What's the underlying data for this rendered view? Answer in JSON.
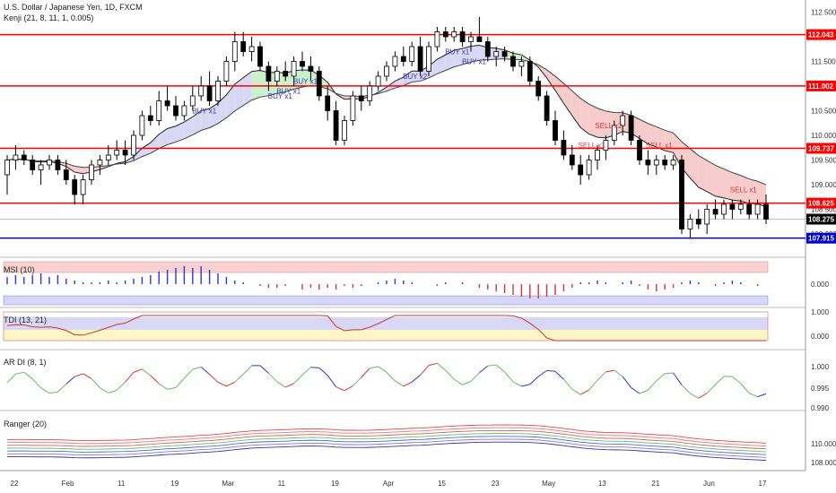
{
  "header": {
    "title": "U.S. Dollar / Japanese Yen, 1D, FXCM",
    "indicator": "Kenji (21, 8, 11, 1, 0.005)"
  },
  "colors": {
    "up_candle": "#ffffff",
    "down_candle": "#000000",
    "resistance": "#ff0000",
    "support": "#0000cc",
    "buy_text": "#3333bb",
    "sell_text": "#ee3333",
    "upper_band_fill_green": "#ccf0cc",
    "band_fill_blue": "#d8d8f4",
    "band_fill_red": "#f6cccc"
  },
  "chart_data": [
    {
      "type": "candlestick",
      "title": "U.S. Dollar / Japanese Yen, 1D, FXCM",
      "ylim": [
        107.6,
        112.6
      ],
      "yticks": [
        108.0,
        108.5,
        109.0,
        109.5,
        110.0,
        110.5,
        111.0,
        111.5,
        112.0,
        112.5
      ],
      "x_ticks": [
        "22",
        "Feb",
        "11",
        "19",
        "Mar",
        "11",
        "19",
        "Apr",
        "15",
        "23",
        "May",
        "13",
        "21",
        "Jun",
        "17"
      ],
      "horizontal_levels": [
        {
          "value": 112.043,
          "label": "112.043",
          "color": "#ff0000"
        },
        {
          "value": 111.002,
          "label": "111.002",
          "color": "#ff0000"
        },
        {
          "value": 109.737,
          "label": "109.737",
          "color": "#ff0000"
        },
        {
          "value": 108.625,
          "label": "108.625",
          "color": "#ff0000"
        },
        {
          "value": 107.915,
          "label": "107.915",
          "color": "#0000cc"
        }
      ],
      "last_price": "108.275",
      "candles_ohlc": [
        [
          109.2,
          109.6,
          108.8,
          109.5
        ],
        [
          109.5,
          109.8,
          109.3,
          109.6
        ],
        [
          109.6,
          109.7,
          109.4,
          109.5
        ],
        [
          109.5,
          109.6,
          109.2,
          109.3
        ],
        [
          109.3,
          109.5,
          109.0,
          109.4
        ],
        [
          109.4,
          109.6,
          109.3,
          109.5
        ],
        [
          109.5,
          109.6,
          109.2,
          109.3
        ],
        [
          109.3,
          109.5,
          109.0,
          109.1
        ],
        [
          109.1,
          109.2,
          108.6,
          108.8
        ],
        [
          108.8,
          109.2,
          108.6,
          109.1
        ],
        [
          109.1,
          109.5,
          109.0,
          109.4
        ],
        [
          109.4,
          109.6,
          109.2,
          109.5
        ],
        [
          109.5,
          109.8,
          109.4,
          109.6
        ],
        [
          109.6,
          109.9,
          109.5,
          109.7
        ],
        [
          109.7,
          109.9,
          109.4,
          109.6
        ],
        [
          109.6,
          110.1,
          109.5,
          110.0
        ],
        [
          110.0,
          110.5,
          109.9,
          110.4
        ],
        [
          110.4,
          110.6,
          110.2,
          110.3
        ],
        [
          110.3,
          110.9,
          110.2,
          110.7
        ],
        [
          110.7,
          111.0,
          110.5,
          110.6
        ],
        [
          110.6,
          110.8,
          110.3,
          110.4
        ],
        [
          110.4,
          110.7,
          110.3,
          110.6
        ],
        [
          110.6,
          111.0,
          110.5,
          110.8
        ],
        [
          110.8,
          111.2,
          110.7,
          111.0
        ],
        [
          111.0,
          111.3,
          110.6,
          110.7
        ],
        [
          110.7,
          111.2,
          110.6,
          111.1
        ],
        [
          111.1,
          111.6,
          111.0,
          111.5
        ],
        [
          111.5,
          112.1,
          111.3,
          111.9
        ],
        [
          111.9,
          112.1,
          111.6,
          111.7
        ],
        [
          111.7,
          112.0,
          111.5,
          111.8
        ],
        [
          111.8,
          111.9,
          111.3,
          111.4
        ],
        [
          111.4,
          111.5,
          110.9,
          111.1
        ],
        [
          111.1,
          111.4,
          111.0,
          111.3
        ],
        [
          111.3,
          111.5,
          111.1,
          111.2
        ],
        [
          111.2,
          111.6,
          111.0,
          111.5
        ],
        [
          111.5,
          111.7,
          111.3,
          111.4
        ],
        [
          111.4,
          111.6,
          111.1,
          111.3
        ],
        [
          111.3,
          111.4,
          110.7,
          110.8
        ],
        [
          110.8,
          111.0,
          110.3,
          110.5
        ],
        [
          110.5,
          110.7,
          109.8,
          109.9
        ],
        [
          109.9,
          110.4,
          109.8,
          110.3
        ],
        [
          110.3,
          110.9,
          110.2,
          110.8
        ],
        [
          110.8,
          111.0,
          110.5,
          110.7
        ],
        [
          110.7,
          111.1,
          110.6,
          111.0
        ],
        [
          111.0,
          111.3,
          110.9,
          111.2
        ],
        [
          111.2,
          111.5,
          111.1,
          111.4
        ],
        [
          111.4,
          111.7,
          111.3,
          111.6
        ],
        [
          111.6,
          111.8,
          111.4,
          111.5
        ],
        [
          111.5,
          111.9,
          111.4,
          111.8
        ],
        [
          111.8,
          112.0,
          111.2,
          111.3
        ],
        [
          111.3,
          111.9,
          111.2,
          111.8
        ],
        [
          111.8,
          112.2,
          111.7,
          112.1
        ],
        [
          112.1,
          112.2,
          111.9,
          112.0
        ],
        [
          112.0,
          112.2,
          111.9,
          112.1
        ],
        [
          112.1,
          112.2,
          111.8,
          111.9
        ],
        [
          111.9,
          112.1,
          111.7,
          112.0
        ],
        [
          112.0,
          112.4,
          111.9,
          111.9
        ],
        [
          111.9,
          112.0,
          111.5,
          111.6
        ],
        [
          111.6,
          111.8,
          111.4,
          111.7
        ],
        [
          111.7,
          111.8,
          111.5,
          111.6
        ],
        [
          111.6,
          111.7,
          111.3,
          111.4
        ],
        [
          111.4,
          111.6,
          111.2,
          111.5
        ],
        [
          111.5,
          111.6,
          111.0,
          111.1
        ],
        [
          111.1,
          111.2,
          110.7,
          110.8
        ],
        [
          110.8,
          110.9,
          110.2,
          110.3
        ],
        [
          110.3,
          110.5,
          109.8,
          109.9
        ],
        [
          109.9,
          110.1,
          109.5,
          109.6
        ],
        [
          109.6,
          109.8,
          109.3,
          109.4
        ],
        [
          109.4,
          109.6,
          109.0,
          109.2
        ],
        [
          109.2,
          109.6,
          109.1,
          109.5
        ],
        [
          109.5,
          109.8,
          109.3,
          109.7
        ],
        [
          109.7,
          110.0,
          109.5,
          109.9
        ],
        [
          109.9,
          110.3,
          109.8,
          110.2
        ],
        [
          110.2,
          110.5,
          110.0,
          110.4
        ],
        [
          110.4,
          110.5,
          109.8,
          109.9
        ],
        [
          109.9,
          110.0,
          109.4,
          109.5
        ],
        [
          109.5,
          109.7,
          109.2,
          109.4
        ],
        [
          109.4,
          109.6,
          109.2,
          109.5
        ],
        [
          109.5,
          109.6,
          109.3,
          109.4
        ],
        [
          109.4,
          109.6,
          109.3,
          109.5
        ],
        [
          109.5,
          109.6,
          108.0,
          108.1
        ],
        [
          108.1,
          108.4,
          107.9,
          108.3
        ],
        [
          108.3,
          108.5,
          108.1,
          108.2
        ],
        [
          108.2,
          108.6,
          108.0,
          108.5
        ],
        [
          108.5,
          108.7,
          108.3,
          108.4
        ],
        [
          108.4,
          108.7,
          108.3,
          108.6
        ],
        [
          108.6,
          108.7,
          108.3,
          108.5
        ],
        [
          108.5,
          108.7,
          108.4,
          108.6
        ],
        [
          108.6,
          108.7,
          108.3,
          108.4
        ],
        [
          108.4,
          108.7,
          108.3,
          108.6
        ],
        [
          108.6,
          108.8,
          108.2,
          108.3
        ]
      ],
      "signals": [
        {
          "text": "BUY x1",
          "index": 23,
          "kind": "buy"
        },
        {
          "text": "BUY x1",
          "index": 33,
          "kind": "buy"
        },
        {
          "text": "BUY x1",
          "index": 32,
          "kind": "buy"
        },
        {
          "text": "BUY x1",
          "index": 35,
          "kind": "buy"
        },
        {
          "text": "BUY x2",
          "index": 48,
          "kind": "buy"
        },
        {
          "text": "BUY x1",
          "index": 53,
          "kind": "buy"
        },
        {
          "text": "BUY x1",
          "index": 55,
          "kind": "buy"
        },
        {
          "text": "SELL x2",
          "index": 71,
          "kind": "sell"
        },
        {
          "text": "SELL x1",
          "index": 69,
          "kind": "sell"
        },
        {
          "text": "SELL x1",
          "index": 77,
          "kind": "sell"
        },
        {
          "text": "SELL x1",
          "index": 87,
          "kind": "sell"
        }
      ]
    },
    {
      "type": "bar",
      "title": "MSI (10)",
      "yticks": [
        "0.000"
      ],
      "values": [
        0.4,
        0.5,
        0.4,
        0.5,
        0.6,
        0.4,
        0.5,
        0.3,
        0.2,
        0.1,
        0.1,
        0.1,
        0.2,
        0.1,
        0.2,
        0.3,
        0.4,
        0.5,
        0.7,
        0.8,
        0.9,
        1.0,
        0.9,
        1.0,
        0.8,
        0.6,
        0.4,
        0.2,
        0.1,
        0.0,
        -0.1,
        -0.2,
        -0.2,
        -0.1,
        0.0,
        -0.3,
        -0.2,
        -0.3,
        -0.2,
        -0.3,
        -0.1,
        -0.2,
        -0.1,
        0.0,
        0.1,
        0.2,
        0.3,
        0.2,
        0.1,
        0.0,
        0.0,
        -0.1,
        0.1,
        0.0,
        0.1,
        0.0,
        -0.2,
        -0.3,
        -0.4,
        -0.5,
        -0.6,
        -0.7,
        -0.8,
        -0.8,
        -0.7,
        -0.6,
        -0.4,
        -0.2,
        0.1,
        0.1,
        0.2,
        0.1,
        0.0,
        0.1,
        0.2,
        -0.1,
        -0.3,
        -0.4,
        -0.3,
        -0.2,
        0.1,
        0.2,
        0.1,
        0.0,
        -0.1,
        0.1,
        0.2,
        0.1,
        0.0,
        -0.1
      ]
    },
    {
      "type": "line",
      "title": "TDI (13, 21)",
      "yticks": [
        "1.000",
        "0.000"
      ]
    },
    {
      "type": "line",
      "title": "AR DI (8, 1)",
      "yticks": [
        "1.000",
        "0.995",
        "0.990"
      ]
    },
    {
      "type": "line",
      "title": "Ranger (20)",
      "yticks": [
        "110.000",
        "108.000"
      ]
    }
  ]
}
